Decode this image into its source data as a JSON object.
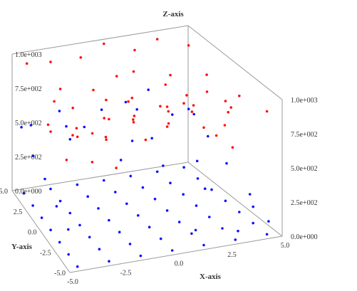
{
  "chart_data": {
    "type": "scatter",
    "title": "Z-axis",
    "xlabel": "X-axis",
    "ylabel": "Y-axis",
    "zlabel": "Z-axis",
    "xlim": [
      -5.0,
      5.0
    ],
    "ylim": [
      -5.0,
      5.0
    ],
    "zlim": [
      0.0,
      1000.0
    ],
    "x_ticks": [
      "-5.0",
      "-2.5",
      "0.0",
      "2.5",
      "5.0"
    ],
    "y_ticks": [
      "5.0",
      "2.5",
      "0.0",
      "-2.5",
      "-5.0"
    ],
    "z_ticks": [
      "0.0e+000",
      "2.5e+002",
      "5.0e+002",
      "7.5e+002",
      "1.0e+003"
    ],
    "z_ticks_back": [
      "1.0e+003",
      "7.5e+002",
      "5.0e+002",
      "2.5e+002",
      "0.0e+000"
    ],
    "grid": false,
    "legend": "none",
    "series": [
      {
        "color": "#1010ff",
        "points": [
          [
            -4.5,
            -4.5,
            0
          ],
          [
            -3,
            -4.5,
            0
          ],
          [
            -1.5,
            -4.5,
            0
          ],
          [
            0,
            -4.5,
            0
          ],
          [
            1.5,
            -4.5,
            0
          ],
          [
            3,
            -4.5,
            0
          ],
          [
            4.5,
            -4.5,
            0
          ],
          [
            -4.5,
            -3,
            0
          ],
          [
            -3,
            -3,
            0
          ],
          [
            -1.5,
            -3,
            0
          ],
          [
            0,
            -3,
            0
          ],
          [
            1.5,
            -3,
            0
          ],
          [
            3,
            -3,
            0
          ],
          [
            4.5,
            -3,
            0
          ],
          [
            -4.5,
            -1.5,
            0
          ],
          [
            -3,
            -1.5,
            0
          ],
          [
            -1.5,
            -1.5,
            0
          ],
          [
            0,
            -1.5,
            0
          ],
          [
            1.5,
            -1.5,
            0
          ],
          [
            3,
            -1.5,
            0
          ],
          [
            4.5,
            -1.5,
            0
          ],
          [
            -4.5,
            0,
            0
          ],
          [
            -3,
            0,
            0
          ],
          [
            -1.5,
            0,
            0
          ],
          [
            0,
            0,
            0
          ],
          [
            1.5,
            0,
            0
          ],
          [
            3,
            0,
            0
          ],
          [
            4.5,
            0,
            0
          ],
          [
            -4.5,
            1.5,
            0
          ],
          [
            -3,
            1.5,
            0
          ],
          [
            -1.5,
            1.5,
            0
          ],
          [
            0,
            1.5,
            0
          ],
          [
            1.5,
            1.5,
            0
          ],
          [
            3,
            1.5,
            0
          ],
          [
            4.5,
            1.5,
            0
          ],
          [
            -4.5,
            3,
            0
          ],
          [
            -3,
            3,
            0
          ],
          [
            -1.5,
            3,
            0
          ],
          [
            0,
            3,
            0
          ],
          [
            1.5,
            3,
            0
          ],
          [
            3,
            3,
            0
          ],
          [
            4.5,
            3,
            0
          ],
          [
            -4.5,
            4.5,
            0
          ],
          [
            -3,
            4.5,
            0
          ],
          [
            -1.5,
            4.5,
            0
          ],
          [
            0,
            4.5,
            0
          ],
          [
            1.5,
            4.5,
            0
          ],
          [
            3,
            4.5,
            0
          ],
          [
            4.5,
            4.5,
            0
          ],
          [
            4.8,
            -4.0,
            60
          ],
          [
            4.8,
            -2.0,
            150
          ],
          [
            4.8,
            0.5,
            240
          ],
          [
            4.8,
            2.5,
            330
          ],
          [
            4.8,
            4.0,
            410
          ],
          [
            3.0,
            -4.8,
            80
          ],
          [
            1.0,
            -4.8,
            140
          ],
          [
            4.0,
            4.8,
            380
          ],
          [
            2.0,
            4.8,
            460
          ],
          [
            0.0,
            4.8,
            500
          ],
          [
            -2.0,
            4.8,
            420
          ],
          [
            -4.0,
            4.8,
            470
          ],
          [
            -4.8,
            4.0,
            520
          ],
          [
            -4.8,
            2.0,
            430
          ],
          [
            -4.8,
            0.0,
            380
          ],
          [
            -4.8,
            -2.0,
            300
          ],
          [
            -4.8,
            -4.0,
            250
          ],
          [
            3.5,
            1.0,
            260
          ],
          [
            2.0,
            3.0,
            350
          ],
          [
            0.5,
            2.0,
            420
          ],
          [
            -1.5,
            3.5,
            480
          ],
          [
            -3.0,
            1.5,
            540
          ],
          [
            1.0,
            4.0,
            580
          ],
          [
            4.0,
            3.0,
            520
          ],
          [
            2.5,
            4.5,
            610
          ],
          [
            -2.5,
            4.5,
            560
          ],
          [
            3.0,
            -1.0,
            180
          ],
          [
            1.5,
            0.5,
            300
          ],
          [
            -0.5,
            1.0,
            360
          ],
          [
            4.5,
            -3.0,
            120
          ]
        ]
      },
      {
        "color": "#ff1010",
        "points": [
          [
            -4.5,
            -4.5,
            950
          ],
          [
            -3,
            -4,
            880
          ],
          [
            -1.5,
            -3.5,
            920
          ],
          [
            0,
            -4,
            990
          ],
          [
            1.5,
            -4.5,
            860
          ],
          [
            3,
            -4,
            940
          ],
          [
            4.5,
            -4.5,
            900
          ],
          [
            -4,
            -2,
            800
          ],
          [
            -2.5,
            -2.5,
            760
          ],
          [
            -1,
            -2,
            840
          ],
          [
            0.5,
            -2.5,
            780
          ],
          [
            2,
            -2,
            870
          ],
          [
            3.5,
            -2.5,
            810
          ],
          [
            4.5,
            -1.5,
            850
          ],
          [
            -4.5,
            0,
            720
          ],
          [
            -3,
            0.5,
            680
          ],
          [
            -1.5,
            0,
            740
          ],
          [
            0,
            0.5,
            700
          ],
          [
            1.5,
            0,
            760
          ],
          [
            3,
            0.5,
            660
          ],
          [
            4.5,
            0,
            730
          ],
          [
            -4,
            2,
            640
          ],
          [
            -2.5,
            2.5,
            700
          ],
          [
            -1,
            2,
            620
          ],
          [
            0.5,
            2.5,
            680
          ],
          [
            2,
            2,
            640
          ],
          [
            3.5,
            2.5,
            600
          ],
          [
            4.5,
            2,
            690
          ],
          [
            -4.5,
            4,
            980
          ],
          [
            -3,
            4.5,
            930
          ],
          [
            -1.5,
            4,
            960
          ],
          [
            0,
            4.5,
            1000
          ],
          [
            1.5,
            4,
            950
          ],
          [
            3,
            4.5,
            970
          ],
          [
            4.5,
            4,
            920
          ],
          [
            -4,
            -1,
            560
          ],
          [
            -2,
            1,
            590
          ],
          [
            0,
            -1,
            610
          ],
          [
            2,
            1,
            570
          ],
          [
            4,
            -1,
            620
          ],
          [
            -3,
            3,
            820
          ],
          [
            1,
            3,
            860
          ],
          [
            3,
            3,
            790
          ],
          [
            -3.5,
            -3.5,
            680
          ],
          [
            2.5,
            -3.5,
            720
          ],
          [
            -0.5,
            -0.5,
            900
          ],
          [
            1,
            -1,
            990
          ],
          [
            -2,
            -1,
            950
          ],
          [
            4,
            1,
            880
          ],
          [
            -4,
            1,
            870
          ],
          [
            0.5,
            4,
            780
          ],
          [
            2.5,
            0,
            820
          ],
          [
            -1,
            3.5,
            740
          ],
          [
            3.5,
            -3,
            580
          ],
          [
            -2.5,
            -4,
            640
          ]
        ]
      }
    ]
  }
}
